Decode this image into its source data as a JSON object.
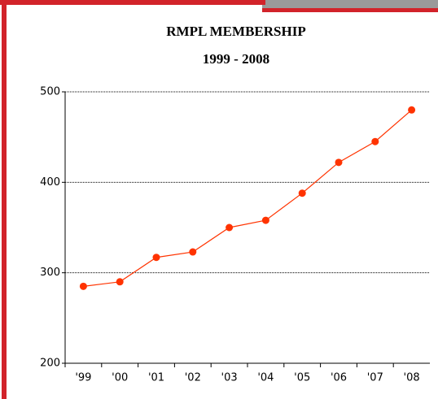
{
  "chart_data": {
    "type": "line",
    "title": "RMPL MEMBERSHIP",
    "subtitle": "1999 - 2008",
    "categories": [
      "'99",
      "'00",
      "'01",
      "'02",
      "'03",
      "'04",
      "'05",
      "'06",
      "'07",
      "'08"
    ],
    "series": [
      {
        "color": "#ff3300",
        "values": [
          285,
          290,
          317,
          323,
          350,
          358,
          388,
          422,
          445,
          480
        ]
      }
    ],
    "ylim": [
      200,
      500
    ],
    "yticks": [
      200,
      300,
      400,
      500
    ],
    "grid": true
  }
}
